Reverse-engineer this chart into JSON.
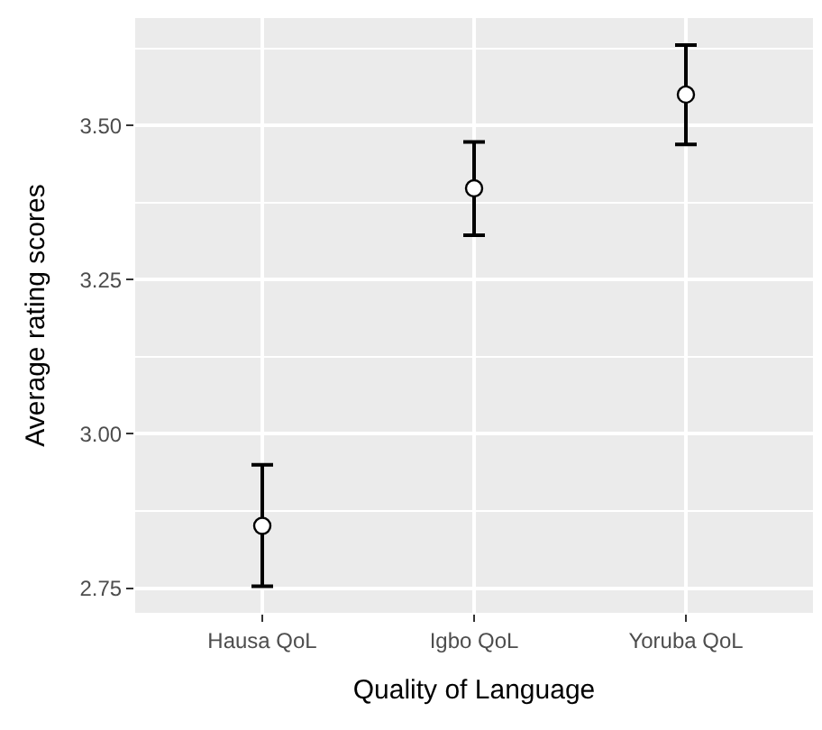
{
  "chart_data": {
    "type": "scatter",
    "xlabel": "Quality of Language",
    "ylabel": "Average rating scores",
    "categories": [
      "Hausa QoL",
      "Igbo QoL",
      "Yoruba QoL"
    ],
    "series": [
      {
        "color": "#ffffff",
        "values": [
          2.851,
          3.398,
          3.55
        ],
        "errors": [
          [
            2.753,
            2.95
          ],
          [
            3.322,
            3.473
          ],
          [
            3.469,
            3.63
          ]
        ]
      }
    ],
    "ylim": [
      2.71,
      3.674
    ],
    "yticks": [
      2.75,
      {
        "value": 3.0,
        "label": "3.00"
      },
      3.25,
      {
        "value": 3.5,
        "label": "3.50"
      }
    ],
    "grid": true,
    "marker": "circle"
  }
}
